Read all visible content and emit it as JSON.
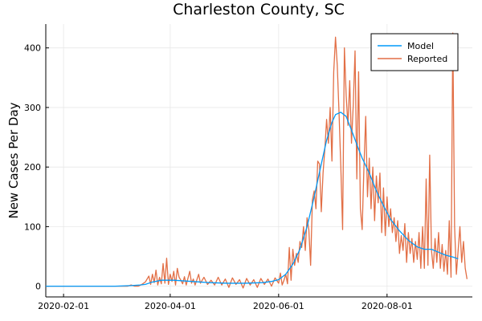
{
  "chart_data": {
    "type": "line",
    "title": "Charleston County, SC",
    "xlabel": "",
    "ylabel": "New Cases Per Day",
    "x_axis_type": "date",
    "xlim": [
      "2020-01-22",
      "2020-09-18"
    ],
    "ylim": [
      -18,
      440
    ],
    "x_ticks": [
      "2020-02-01",
      "2020-04-01",
      "2020-06-01",
      "2020-08-01"
    ],
    "y_ticks": [
      0,
      100,
      200,
      300,
      400
    ],
    "grid": true,
    "legend_position": "top-right",
    "colors": {
      "Model": "#009AFA",
      "Reported": "#E26F46"
    },
    "series": [
      {
        "name": "Model",
        "points": [
          [
            "2020-01-22",
            0
          ],
          [
            "2020-03-01",
            0
          ],
          [
            "2020-03-10",
            1
          ],
          [
            "2020-03-15",
            2
          ],
          [
            "2020-03-18",
            3
          ],
          [
            "2020-03-22",
            7
          ],
          [
            "2020-03-27",
            10
          ],
          [
            "2020-04-03",
            10
          ],
          [
            "2020-04-13",
            8
          ],
          [
            "2020-04-23",
            6
          ],
          [
            "2020-05-03",
            5
          ],
          [
            "2020-05-13",
            5
          ],
          [
            "2020-05-23",
            6
          ],
          [
            "2020-05-28",
            8
          ],
          [
            "2020-06-01",
            11
          ],
          [
            "2020-06-05",
            20
          ],
          [
            "2020-06-09",
            37
          ],
          [
            "2020-06-13",
            62
          ],
          [
            "2020-06-17",
            100
          ],
          [
            "2020-06-21",
            150
          ],
          [
            "2020-06-25",
            205
          ],
          [
            "2020-06-28",
            245
          ],
          [
            "2020-07-01",
            275
          ],
          [
            "2020-07-03",
            288
          ],
          [
            "2020-07-06",
            292
          ],
          [
            "2020-07-09",
            285
          ],
          [
            "2020-07-12",
            262
          ],
          [
            "2020-07-15",
            238
          ],
          [
            "2020-07-18",
            215
          ],
          [
            "2020-07-22",
            190
          ],
          [
            "2020-07-26",
            160
          ],
          [
            "2020-07-30",
            135
          ],
          [
            "2020-08-03",
            112
          ],
          [
            "2020-08-08",
            93
          ],
          [
            "2020-08-13",
            77
          ],
          [
            "2020-08-18",
            66
          ],
          [
            "2020-08-22",
            62
          ],
          [
            "2020-08-26",
            62
          ],
          [
            "2020-08-30",
            57
          ],
          [
            "2020-09-03",
            52
          ],
          [
            "2020-09-07",
            49
          ],
          [
            "2020-09-10",
            46
          ]
        ]
      },
      {
        "name": "Reported",
        "points": [
          [
            "2020-01-22",
            0
          ],
          [
            "2020-03-01",
            0
          ],
          [
            "2020-03-08",
            0
          ],
          [
            "2020-03-10",
            2
          ],
          [
            "2020-03-12",
            0
          ],
          [
            "2020-03-14",
            0
          ],
          [
            "2020-03-16",
            3
          ],
          [
            "2020-03-18",
            7
          ],
          [
            "2020-03-20",
            17
          ],
          [
            "2020-03-21",
            3
          ],
          [
            "2020-03-22",
            20
          ],
          [
            "2020-03-23",
            6
          ],
          [
            "2020-03-24",
            27
          ],
          [
            "2020-03-25",
            2
          ],
          [
            "2020-03-26",
            15
          ],
          [
            "2020-03-27",
            4
          ],
          [
            "2020-03-28",
            38
          ],
          [
            "2020-03-29",
            5
          ],
          [
            "2020-03-30",
            47
          ],
          [
            "2020-03-31",
            3
          ],
          [
            "2020-04-01",
            20
          ],
          [
            "2020-04-02",
            8
          ],
          [
            "2020-04-03",
            25
          ],
          [
            "2020-04-04",
            2
          ],
          [
            "2020-04-05",
            30
          ],
          [
            "2020-04-06",
            15
          ],
          [
            "2020-04-07",
            10
          ],
          [
            "2020-04-08",
            4
          ],
          [
            "2020-04-09",
            16
          ],
          [
            "2020-04-10",
            2
          ],
          [
            "2020-04-12",
            25
          ],
          [
            "2020-04-13",
            5
          ],
          [
            "2020-04-14",
            12
          ],
          [
            "2020-04-15",
            2
          ],
          [
            "2020-04-17",
            20
          ],
          [
            "2020-04-18",
            5
          ],
          [
            "2020-04-20",
            15
          ],
          [
            "2020-04-22",
            3
          ],
          [
            "2020-04-24",
            10
          ],
          [
            "2020-04-26",
            2
          ],
          [
            "2020-04-28",
            15
          ],
          [
            "2020-04-30",
            2
          ],
          [
            "2020-05-02",
            12
          ],
          [
            "2020-05-04",
            -2
          ],
          [
            "2020-05-06",
            14
          ],
          [
            "2020-05-08",
            3
          ],
          [
            "2020-05-10",
            11
          ],
          [
            "2020-05-12",
            -3
          ],
          [
            "2020-05-14",
            13
          ],
          [
            "2020-05-16",
            2
          ],
          [
            "2020-05-18",
            11
          ],
          [
            "2020-05-20",
            -2
          ],
          [
            "2020-05-22",
            13
          ],
          [
            "2020-05-24",
            3
          ],
          [
            "2020-05-26",
            12
          ],
          [
            "2020-05-28",
            0
          ],
          [
            "2020-05-30",
            14
          ],
          [
            "2020-06-01",
            5
          ],
          [
            "2020-06-02",
            22
          ],
          [
            "2020-06-03",
            2
          ],
          [
            "2020-06-04",
            10
          ],
          [
            "2020-06-05",
            20
          ],
          [
            "2020-06-06",
            4
          ],
          [
            "2020-06-07",
            65
          ],
          [
            "2020-06-08",
            10
          ],
          [
            "2020-06-09",
            62
          ],
          [
            "2020-06-10",
            35
          ],
          [
            "2020-06-11",
            55
          ],
          [
            "2020-06-12",
            40
          ],
          [
            "2020-06-13",
            75
          ],
          [
            "2020-06-14",
            65
          ],
          [
            "2020-06-15",
            100
          ],
          [
            "2020-06-16",
            60
          ],
          [
            "2020-06-17",
            115
          ],
          [
            "2020-06-18",
            95
          ],
          [
            "2020-06-19",
            35
          ],
          [
            "2020-06-20",
            145
          ],
          [
            "2020-06-21",
            160
          ],
          [
            "2020-06-22",
            130
          ],
          [
            "2020-06-23",
            210
          ],
          [
            "2020-06-24",
            205
          ],
          [
            "2020-06-25",
            125
          ],
          [
            "2020-06-26",
            190
          ],
          [
            "2020-06-27",
            230
          ],
          [
            "2020-06-28",
            280
          ],
          [
            "2020-06-29",
            240
          ],
          [
            "2020-06-30",
            300
          ],
          [
            "2020-07-01",
            210
          ],
          [
            "2020-07-02",
            360
          ],
          [
            "2020-07-03",
            418
          ],
          [
            "2020-07-04",
            370
          ],
          [
            "2020-07-05",
            290
          ],
          [
            "2020-07-06",
            200
          ],
          [
            "2020-07-07",
            95
          ],
          [
            "2020-07-08",
            400
          ],
          [
            "2020-07-09",
            320
          ],
          [
            "2020-07-10",
            270
          ],
          [
            "2020-07-11",
            345
          ],
          [
            "2020-07-12",
            240
          ],
          [
            "2020-07-13",
            305
          ],
          [
            "2020-07-14",
            395
          ],
          [
            "2020-07-15",
            180
          ],
          [
            "2020-07-16",
            360
          ],
          [
            "2020-07-17",
            130
          ],
          [
            "2020-07-18",
            95
          ],
          [
            "2020-07-19",
            200
          ],
          [
            "2020-07-20",
            285
          ],
          [
            "2020-07-21",
            150
          ],
          [
            "2020-07-22",
            215
          ],
          [
            "2020-07-23",
            130
          ],
          [
            "2020-07-24",
            200
          ],
          [
            "2020-07-25",
            110
          ],
          [
            "2020-07-26",
            185
          ],
          [
            "2020-07-27",
            140
          ],
          [
            "2020-07-28",
            190
          ],
          [
            "2020-07-29",
            90
          ],
          [
            "2020-07-30",
            165
          ],
          [
            "2020-07-31",
            85
          ],
          [
            "2020-08-01",
            150
          ],
          [
            "2020-08-02",
            100
          ],
          [
            "2020-08-03",
            130
          ],
          [
            "2020-08-04",
            90
          ],
          [
            "2020-08-05",
            115
          ],
          [
            "2020-08-06",
            75
          ],
          [
            "2020-08-07",
            110
          ],
          [
            "2020-08-08",
            55
          ],
          [
            "2020-08-09",
            85
          ],
          [
            "2020-08-10",
            60
          ],
          [
            "2020-08-11",
            105
          ],
          [
            "2020-08-12",
            40
          ],
          [
            "2020-08-13",
            90
          ],
          [
            "2020-08-14",
            55
          ],
          [
            "2020-08-15",
            80
          ],
          [
            "2020-08-16",
            40
          ],
          [
            "2020-08-17",
            75
          ],
          [
            "2020-08-18",
            45
          ],
          [
            "2020-08-19",
            90
          ],
          [
            "2020-08-20",
            30
          ],
          [
            "2020-08-21",
            100
          ],
          [
            "2020-08-22",
            30
          ],
          [
            "2020-08-23",
            180
          ],
          [
            "2020-08-24",
            35
          ],
          [
            "2020-08-25",
            220
          ],
          [
            "2020-08-26",
            60
          ],
          [
            "2020-08-27",
            30
          ],
          [
            "2020-08-28",
            80
          ],
          [
            "2020-08-29",
            40
          ],
          [
            "2020-08-30",
            90
          ],
          [
            "2020-08-31",
            30
          ],
          [
            "2020-09-01",
            70
          ],
          [
            "2020-09-02",
            25
          ],
          [
            "2020-09-03",
            60
          ],
          [
            "2020-09-04",
            20
          ],
          [
            "2020-09-05",
            110
          ],
          [
            "2020-09-06",
            15
          ],
          [
            "2020-09-07",
            425
          ],
          [
            "2020-09-08",
            100
          ],
          [
            "2020-09-09",
            20
          ],
          [
            "2020-09-10",
            60
          ],
          [
            "2020-09-11",
            100
          ],
          [
            "2020-09-12",
            40
          ],
          [
            "2020-09-13",
            75
          ],
          [
            "2020-09-14",
            30
          ],
          [
            "2020-09-15",
            12
          ]
        ]
      }
    ]
  }
}
